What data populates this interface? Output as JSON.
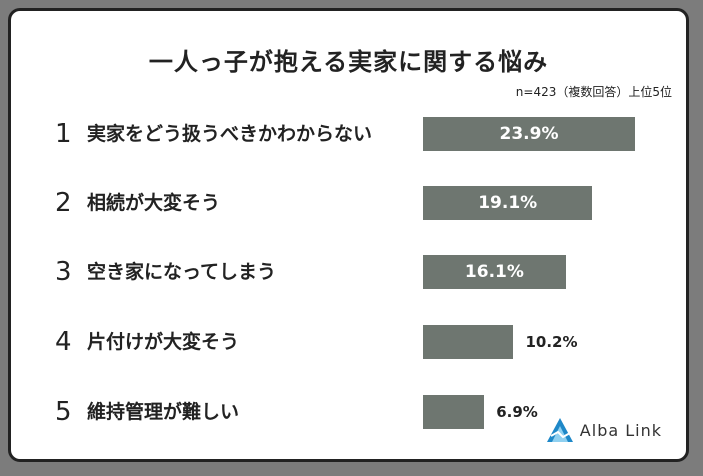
{
  "chart_data": {
    "type": "bar",
    "orientation": "horizontal",
    "title": "一人っ子が抱える実家に関する悩み",
    "note": "n=423（複数回答）上位5位",
    "ranks": [
      "1",
      "2",
      "3",
      "4",
      "5"
    ],
    "categories": [
      "実家をどう扱うべきかわからない",
      "相続が大変そう",
      "空き家になってしまう",
      "片付けが大変そう",
      "維持管理が難しい"
    ],
    "values": [
      23.9,
      19.1,
      16.1,
      10.2,
      6.9
    ],
    "value_labels": [
      "23.9%",
      "19.1%",
      "16.1%",
      "10.2%",
      "6.9%"
    ],
    "unit": "%",
    "bar_color": "#6e7670"
  },
  "logo": {
    "text": "Alba Link",
    "accent": "#1e88c8"
  }
}
